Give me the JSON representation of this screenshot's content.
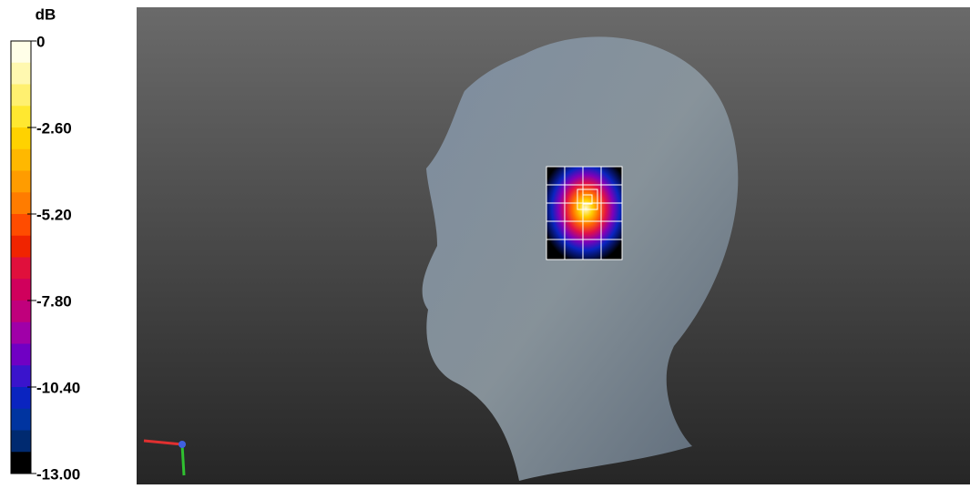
{
  "colorbar": {
    "unit": "dB",
    "range": [
      -13,
      0
    ],
    "ticks": [
      0,
      {
        "value": -2.6,
        "label": "-2.60"
      },
      {
        "value": -5.2,
        "label": "-5.20"
      },
      {
        "value": -7.8,
        "label": "-7.80"
      },
      {
        "value": -10.4,
        "label": "-10.40"
      },
      {
        "value": -13,
        "label": "-13.00"
      }
    ],
    "colors": [
      "#fffee8",
      "#fff8b0",
      "#fff070",
      "#ffe830",
      "#ffd200",
      "#ffb800",
      "#ff9c00",
      "#ff7c00",
      "#ff4c00",
      "#f02400",
      "#e0103c",
      "#d0005c",
      "#c0007c",
      "#a000a8",
      "#7000c4",
      "#3a14cc",
      "#0a24c0",
      "#0034a0",
      "#002a70",
      "#000000"
    ]
  }
}
